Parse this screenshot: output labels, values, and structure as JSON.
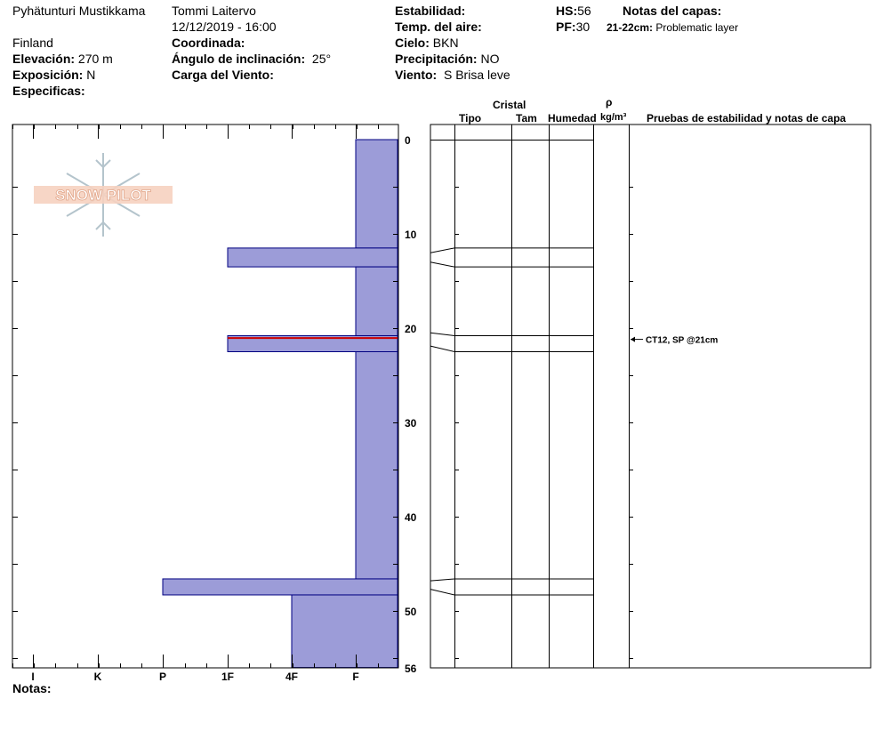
{
  "header": {
    "location": "Pyhätunturi Mustikkama",
    "observer": "Tommi Laitervo",
    "datetime": "12/12/2019 - 16:00",
    "country": "Finland",
    "elevation_label": "Elevación:",
    "elevation": "270 m",
    "exposure_label": "Exposición:",
    "exposure": "N",
    "specifics_label": "Especificas:",
    "coord_label": "Coordinada:",
    "slope_label": "Ángulo de inclinación:",
    "slope": "25°",
    "wind_load_label": "Carga del Viento:",
    "stability_label": "Estabilidad:",
    "air_temp_label": "Temp. del aire:",
    "sky_label": "Cielo:",
    "sky": "BKN",
    "precip_label": "Precipitación:",
    "precip": "NO",
    "wind_label": "Viento:",
    "wind": "S Brisa leve",
    "hs_label": "HS:",
    "hs": "56",
    "pf_label": "PF:",
    "pf": "30",
    "layer_notes_label": "Notas del capas:",
    "layer_note_depth": "21-22cm:",
    "layer_note_text": "Problematic layer"
  },
  "logo": {
    "text": "SNOW PILOT"
  },
  "notes_label": "Notas:",
  "columns": {
    "crystal": "Cristal",
    "type": "Tipo",
    "size": "Tam",
    "moisture": "Humedad",
    "rho": "ρ",
    "density_unit": "kg/m³",
    "tests": "Pruebas de estabilidad y notas de capa"
  },
  "test_annotation": {
    "text": "CT12, SP @21cm",
    "depth": 21
  },
  "colors": {
    "layer_fill": "#9c9cd8",
    "layer_stroke": "#000080",
    "weak_layer": "#cc0000"
  },
  "chart_data": {
    "type": "bar",
    "title": "",
    "xlabel": "",
    "ylabel": "",
    "orientation": "horizontal",
    "y_axis": "depth (cm)",
    "ylim": [
      0,
      56
    ],
    "y_ticks": [
      0,
      10,
      20,
      30,
      40,
      50,
      56
    ],
    "x_categories": [
      "I",
      "K",
      "P",
      "1F",
      "4F",
      "F"
    ],
    "layers": [
      {
        "from": 0,
        "to": 11.5,
        "hardness": "F"
      },
      {
        "from": 11.5,
        "to": 13.5,
        "hardness": "1F"
      },
      {
        "from": 13.5,
        "to": 20.8,
        "hardness": "F"
      },
      {
        "from": 20.8,
        "to": 22.5,
        "hardness": "1F"
      },
      {
        "from": 22.5,
        "to": 46.6,
        "hardness": "F"
      },
      {
        "from": 46.6,
        "to": 48.3,
        "hardness": "P"
      },
      {
        "from": 48.3,
        "to": 56,
        "hardness": "4F"
      }
    ],
    "weak_layer_depth": 21
  }
}
